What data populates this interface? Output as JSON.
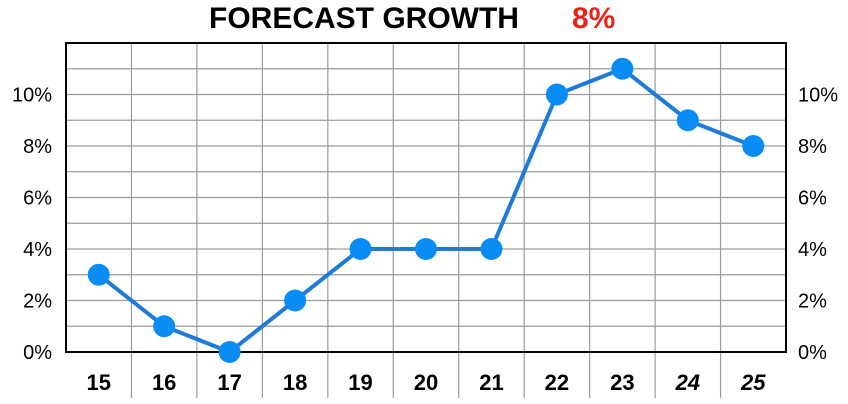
{
  "header": {
    "title": "FORECAST GROWTH",
    "value": "8%"
  },
  "chart_data": {
    "type": "line",
    "title": "FORECAST GROWTH",
    "headline_value": "8%",
    "categories": [
      "15",
      "16",
      "17",
      "18",
      "19",
      "20",
      "21",
      "22",
      "23",
      "24",
      "25"
    ],
    "forecast_categories": [
      "24",
      "25"
    ],
    "series": [
      {
        "values": [
          3,
          1,
          0,
          2,
          4,
          4,
          4,
          10,
          11,
          9,
          8
        ]
      }
    ],
    "y_ticks": [
      "0%",
      "2%",
      "4%",
      "6%",
      "8%",
      "10%"
    ],
    "y_tick_values": [
      0,
      2,
      4,
      6,
      8,
      10
    ],
    "ylim": [
      0,
      12
    ],
    "y_axis_sides": "left and right",
    "grid": true,
    "colors": {
      "line": "#1f7bd6",
      "marker": "#0a8cf5",
      "title_value": "#e8231a",
      "grid": "#9a9a9a",
      "forecast_divider": "#bdbdbd"
    }
  }
}
